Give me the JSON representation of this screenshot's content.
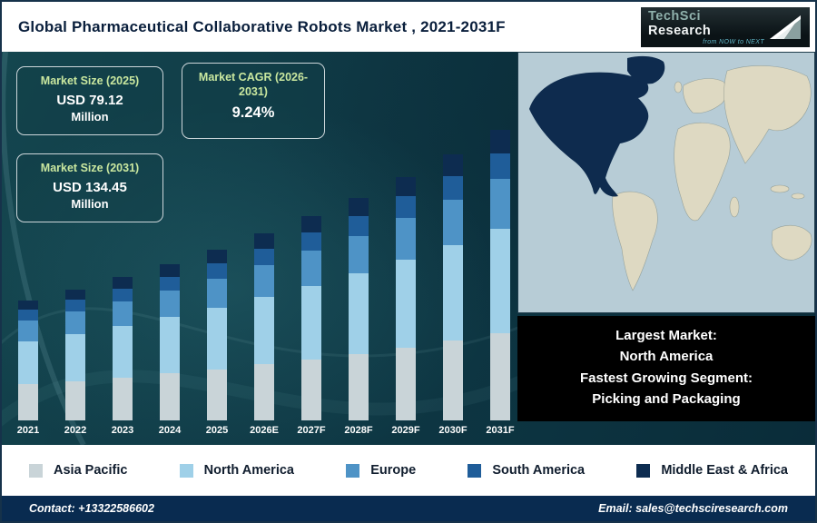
{
  "header": {
    "title": "Global Pharmaceutical Collaborative Robots Market , 2021-2031F",
    "logo": {
      "brand_primary": "TechSci",
      "brand_secondary": "Research",
      "tagline": "from NOW to NEXT"
    }
  },
  "stats": [
    {
      "label": "Market Size (2025)",
      "value": "USD 79.12",
      "unit": "Million"
    },
    {
      "label": "Market CAGR (2026-2031)",
      "value": "9.24%"
    },
    {
      "label": "Market Size (2031)",
      "value": "USD 134.45",
      "unit": "Million"
    }
  ],
  "chart_data": {
    "type": "bar",
    "stacked": true,
    "title": "Global Pharmaceutical Collaborative Robots Market , 2021-2031F",
    "unit": "USD Million",
    "legend_position": "bottom",
    "categories": [
      "2021",
      "2022",
      "2023",
      "2024",
      "2025",
      "2026E",
      "2027F",
      "2028F",
      "2029F",
      "2030F",
      "2031F"
    ],
    "series": [
      {
        "name": "Asia Pacific",
        "color": "#c9d4d8",
        "values": [
          16.7,
          18.2,
          19.9,
          21.7,
          23.7,
          25.9,
          28.3,
          30.9,
          33.8,
          36.9,
          40.3
        ]
      },
      {
        "name": "North America",
        "color": "#9fd0e8",
        "values": [
          20.0,
          21.9,
          23.9,
          26.1,
          28.5,
          31.1,
          34.0,
          37.1,
          40.6,
          44.3,
          48.4
        ]
      },
      {
        "name": "Europe",
        "color": "#4e93c6",
        "values": [
          9.5,
          10.3,
          11.3,
          12.3,
          13.5,
          14.7,
          16.1,
          17.5,
          19.2,
          20.9,
          22.9
        ]
      },
      {
        "name": "South America",
        "color": "#1f5d99",
        "values": [
          5.0,
          5.5,
          6.0,
          6.5,
          7.1,
          7.8,
          8.5,
          9.3,
          10.1,
          11.1,
          12.1
        ]
      },
      {
        "name": "Middle East & Africa",
        "color": "#0d2c50",
        "values": [
          4.4,
          4.8,
          5.2,
          5.8,
          6.32,
          6.9,
          7.5,
          8.3,
          9.0,
          9.9,
          10.75
        ]
      }
    ],
    "totals": [
      55.6,
      60.7,
      66.3,
      72.4,
      79.12,
      86.4,
      94.4,
      103.1,
      112.7,
      123.1,
      134.45
    ],
    "annotations": {
      "market_size_2025": "USD 79.12 Million",
      "market_size_2031": "USD 134.45 Million",
      "cagr_2026_2031": "9.24%"
    }
  },
  "map_callout": {
    "lines": [
      "Largest Market:",
      "North America",
      "Fastest Growing Segment:",
      "Picking and Packaging"
    ]
  },
  "footer": {
    "contact": "Contact: +13322586602",
    "email": "Email: sales@techsciresearch.com"
  },
  "colors": {
    "accent-green": "#c9e79f",
    "footer-bg": "#092b50",
    "map-ocean": "#b7ccd6",
    "map-land": "#ded9c2",
    "map-highlight": "#0e2b4e",
    "title-navy": "#0a1f3c"
  }
}
